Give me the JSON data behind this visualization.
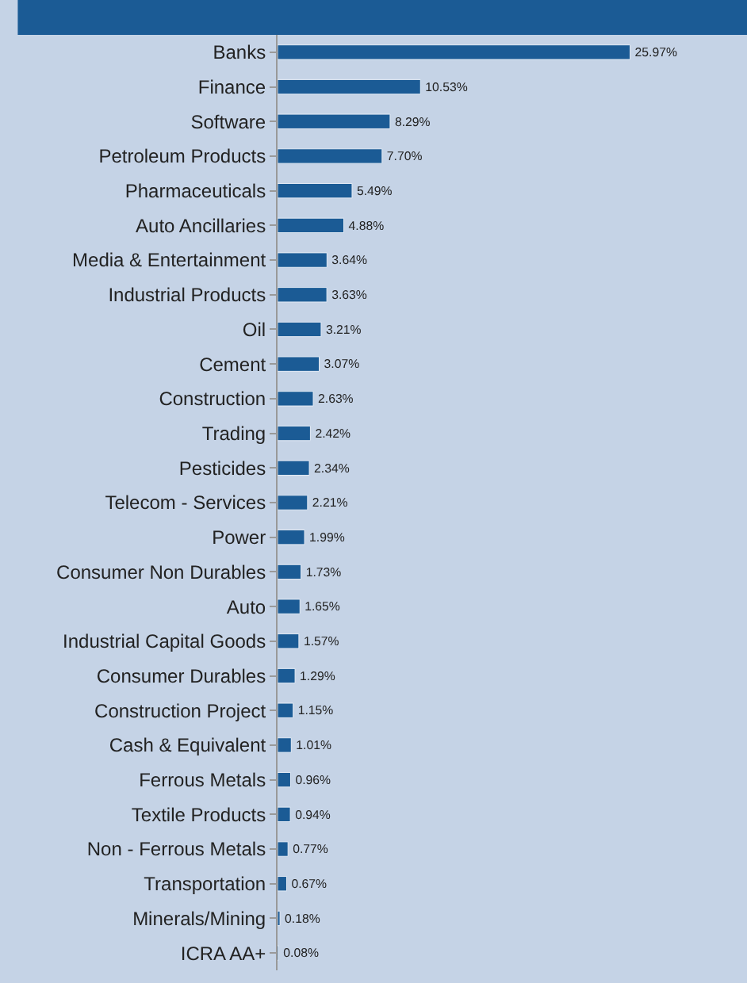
{
  "chart_data": {
    "type": "bar",
    "orientation": "horizontal",
    "tick_labels": "y",
    "grid": false,
    "legend": false,
    "categories": [
      "Banks",
      "Finance",
      "Software",
      "Petroleum Products",
      "Pharmaceuticals",
      "Auto Ancillaries",
      "Media & Entertainment",
      "Industrial Products",
      "Oil",
      "Cement",
      "Construction",
      "Trading",
      "Pesticides",
      "Telecom - Services",
      "Power",
      "Consumer Non Durables",
      "Auto",
      "Industrial Capital Goods",
      "Consumer Durables",
      "Construction Project",
      "Cash & Equivalent",
      "Ferrous Metals",
      "Textile Products",
      "Non - Ferrous Metals",
      "Transportation",
      "Minerals/Mining",
      "ICRA AA+"
    ],
    "values": [
      25.97,
      10.53,
      8.29,
      7.7,
      5.49,
      4.88,
      3.64,
      3.63,
      3.21,
      3.07,
      2.63,
      2.42,
      2.34,
      2.21,
      1.99,
      1.73,
      1.65,
      1.57,
      1.29,
      1.15,
      1.01,
      0.96,
      0.94,
      0.77,
      0.67,
      0.18,
      0.08
    ],
    "value_labels": [
      "25.97%",
      "10.53%",
      "8.29%",
      "7.70%",
      "5.49%",
      "4.88%",
      "3.64%",
      "3.63%",
      "3.21%",
      "3.07%",
      "2.63%",
      "2.42%",
      "2.34%",
      "2.21%",
      "1.99%",
      "1.73%",
      "1.65%",
      "1.57%",
      "1.29%",
      "1.15%",
      "1.01%",
      "0.96%",
      "0.94%",
      "0.77%",
      "0.67%",
      "0.18%",
      "0.08%"
    ],
    "color": "#1b5b95"
  }
}
